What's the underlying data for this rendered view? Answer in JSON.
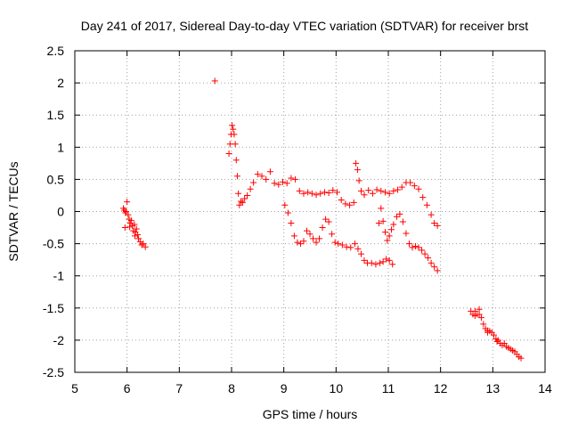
{
  "chart_data": {
    "type": "scatter",
    "title": "Day 241 of 2017, Sidereal Day-to-day VTEC variation (SDTVAR) for receiver brst",
    "xlabel": "GPS time / hours",
    "ylabel": "SDTVAR / TECUs",
    "xlim": [
      5,
      14
    ],
    "ylim": [
      -2.5,
      2.5
    ],
    "x_ticks": [
      5,
      6,
      7,
      8,
      9,
      10,
      11,
      12,
      13,
      14
    ],
    "y_ticks": [
      -2.5,
      -2,
      -1.5,
      -1,
      -0.5,
      0,
      0.5,
      1,
      1.5,
      2,
      2.5
    ],
    "x_tick_labels": [
      "5",
      "6",
      "7",
      "8",
      "9",
      "10",
      "11",
      "12",
      "13",
      "14"
    ],
    "y_tick_labels": [
      "-2.5",
      "-2",
      "-1.5",
      "-1",
      "-0.5",
      "0",
      "0.5",
      "1",
      "1.5",
      "2",
      "2.5"
    ],
    "grid": true,
    "marker": "+",
    "series": [
      {
        "name": "SDTVAR",
        "color": "#ff0000",
        "points": [
          [
            5.93,
            0.05
          ],
          [
            5.95,
            0.02
          ],
          [
            5.97,
            -0.02
          ],
          [
            5.98,
            0.0
          ],
          [
            6.0,
            0.15
          ],
          [
            6.02,
            -0.05
          ],
          [
            6.04,
            -0.12
          ],
          [
            6.06,
            -0.18
          ],
          [
            6.08,
            -0.14
          ],
          [
            6.1,
            -0.22
          ],
          [
            6.12,
            -0.3
          ],
          [
            6.14,
            -0.2
          ],
          [
            6.16,
            -0.32
          ],
          [
            6.18,
            -0.27
          ],
          [
            6.2,
            -0.36
          ],
          [
            6.22,
            -0.42
          ],
          [
            6.25,
            -0.47
          ],
          [
            6.28,
            -0.52
          ],
          [
            6.31,
            -0.5
          ],
          [
            6.35,
            -0.55
          ],
          [
            5.96,
            -0.25
          ],
          [
            6.05,
            -0.24
          ],
          [
            6.15,
            -0.38
          ],
          [
            7.68,
            2.03
          ],
          [
            7.95,
            0.9
          ],
          [
            7.97,
            1.05
          ],
          [
            7.99,
            1.2
          ],
          [
            8.01,
            1.34
          ],
          [
            8.03,
            1.28
          ],
          [
            8.05,
            1.2
          ],
          [
            8.07,
            1.05
          ],
          [
            8.09,
            0.8
          ],
          [
            8.11,
            0.55
          ],
          [
            8.13,
            0.28
          ],
          [
            8.15,
            0.1
          ],
          [
            8.18,
            0.16
          ],
          [
            8.21,
            0.14
          ],
          [
            8.25,
            0.2
          ],
          [
            8.3,
            0.25
          ],
          [
            8.36,
            0.35
          ],
          [
            8.42,
            0.45
          ],
          [
            8.5,
            0.58
          ],
          [
            8.58,
            0.55
          ],
          [
            8.66,
            0.5
          ],
          [
            8.74,
            0.62
          ],
          [
            8.82,
            0.44
          ],
          [
            8.9,
            0.42
          ],
          [
            8.98,
            0.46
          ],
          [
            9.06,
            0.44
          ],
          [
            9.14,
            0.52
          ],
          [
            9.22,
            0.5
          ],
          [
            9.3,
            0.32
          ],
          [
            9.38,
            0.28
          ],
          [
            9.46,
            0.3
          ],
          [
            9.54,
            0.28
          ],
          [
            9.62,
            0.26
          ],
          [
            9.7,
            0.28
          ],
          [
            9.78,
            0.3
          ],
          [
            9.86,
            0.29
          ],
          [
            9.94,
            0.33
          ],
          [
            10.02,
            0.3
          ],
          [
            10.1,
            0.18
          ],
          [
            10.18,
            0.12
          ],
          [
            10.26,
            0.1
          ],
          [
            10.34,
            0.14
          ],
          [
            10.38,
            0.75
          ],
          [
            10.41,
            0.65
          ],
          [
            10.44,
            0.48
          ],
          [
            10.48,
            0.32
          ],
          [
            10.54,
            0.26
          ],
          [
            10.62,
            0.33
          ],
          [
            10.7,
            0.28
          ],
          [
            10.78,
            0.34
          ],
          [
            10.86,
            0.32
          ],
          [
            10.94,
            0.3
          ],
          [
            11.02,
            0.28
          ],
          [
            11.1,
            0.32
          ],
          [
            11.18,
            0.34
          ],
          [
            11.26,
            0.38
          ],
          [
            11.34,
            0.45
          ],
          [
            11.42,
            0.45
          ],
          [
            11.5,
            0.4
          ],
          [
            11.58,
            0.35
          ],
          [
            11.66,
            0.22
          ],
          [
            11.74,
            0.1
          ],
          [
            11.82,
            -0.05
          ],
          [
            11.88,
            -0.18
          ],
          [
            11.94,
            -0.22
          ],
          [
            9.02,
            0.1
          ],
          [
            9.08,
            -0.02
          ],
          [
            9.14,
            -0.18
          ],
          [
            9.2,
            -0.38
          ],
          [
            9.26,
            -0.48
          ],
          [
            9.32,
            -0.5
          ],
          [
            9.38,
            -0.46
          ],
          [
            9.44,
            -0.3
          ],
          [
            9.5,
            -0.35
          ],
          [
            9.56,
            -0.42
          ],
          [
            9.62,
            -0.48
          ],
          [
            9.68,
            -0.42
          ],
          [
            9.74,
            -0.25
          ],
          [
            9.8,
            -0.12
          ],
          [
            9.86,
            -0.16
          ],
          [
            9.92,
            -0.35
          ],
          [
            9.98,
            -0.48
          ],
          [
            10.04,
            -0.5
          ],
          [
            10.12,
            -0.52
          ],
          [
            10.2,
            -0.55
          ],
          [
            10.28,
            -0.56
          ],
          [
            10.36,
            -0.5
          ],
          [
            10.42,
            -0.58
          ],
          [
            10.48,
            -0.66
          ],
          [
            10.54,
            -0.76
          ],
          [
            10.6,
            -0.8
          ],
          [
            10.68,
            -0.8
          ],
          [
            10.76,
            -0.82
          ],
          [
            10.84,
            -0.8
          ],
          [
            10.9,
            -0.78
          ],
          [
            10.96,
            -0.74
          ],
          [
            11.02,
            -0.76
          ],
          [
            11.08,
            -0.82
          ],
          [
            10.82,
            -0.18
          ],
          [
            10.86,
            0.05
          ],
          [
            10.9,
            -0.15
          ],
          [
            10.94,
            -0.32
          ],
          [
            10.98,
            -0.45
          ],
          [
            11.02,
            -0.38
          ],
          [
            11.06,
            -0.28
          ],
          [
            11.1,
            -0.2
          ],
          [
            11.16,
            -0.08
          ],
          [
            11.22,
            -0.04
          ],
          [
            11.28,
            -0.16
          ],
          [
            11.34,
            -0.34
          ],
          [
            11.4,
            -0.5
          ],
          [
            11.46,
            -0.56
          ],
          [
            11.52,
            -0.54
          ],
          [
            11.58,
            -0.56
          ],
          [
            11.64,
            -0.6
          ],
          [
            11.7,
            -0.66
          ],
          [
            11.76,
            -0.72
          ],
          [
            11.82,
            -0.8
          ],
          [
            11.88,
            -0.86
          ],
          [
            11.94,
            -0.92
          ],
          [
            12.58,
            -1.55
          ],
          [
            12.62,
            -1.6
          ],
          [
            12.66,
            -1.62
          ],
          [
            12.7,
            -1.6
          ],
          [
            12.74,
            -1.52
          ],
          [
            12.78,
            -1.65
          ],
          [
            12.82,
            -1.75
          ],
          [
            12.86,
            -1.82
          ],
          [
            12.9,
            -1.88
          ],
          [
            12.94,
            -1.86
          ],
          [
            12.98,
            -1.88
          ],
          [
            13.02,
            -1.92
          ],
          [
            13.06,
            -1.98
          ],
          [
            13.1,
            -2.0
          ],
          [
            13.14,
            -2.05
          ],
          [
            13.18,
            -2.08
          ],
          [
            13.22,
            -2.05
          ],
          [
            13.26,
            -2.1
          ],
          [
            13.3,
            -2.12
          ],
          [
            13.34,
            -2.14
          ],
          [
            13.38,
            -2.16
          ],
          [
            13.42,
            -2.18
          ],
          [
            13.46,
            -2.22
          ],
          [
            13.5,
            -2.26
          ],
          [
            13.54,
            -2.28
          ],
          [
            12.66,
            -1.55
          ],
          [
            12.74,
            -1.6
          ],
          [
            12.9,
            -1.85
          ],
          [
            13.08,
            -2.02
          ]
        ]
      }
    ]
  }
}
